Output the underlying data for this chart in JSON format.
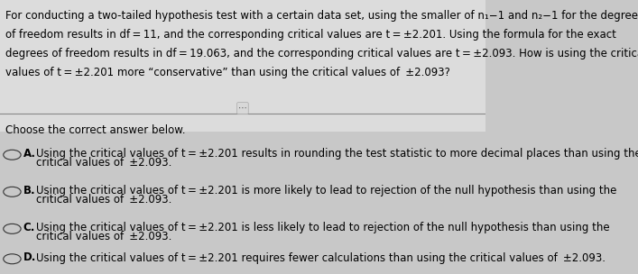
{
  "bg_color": "#d0d0d0",
  "top_bg": "#e8e8e8",
  "bottom_bg": "#c8c8c8",
  "title_text_line1": "For conducting a two-tailed hypothesis test with a certain data set, using the smaller of n₁−1 and n₂−1 for the degrees",
  "title_text_line2": "of freedom results in df = 11, and the corresponding critical values are t = ±2.201. Using the formula for the exact",
  "title_text_line3": "degrees of freedom results in df = 19.063, and the corresponding critical values are t = ±2.093. How is using the critical",
  "title_text_line4": "values of t = ±2.201 more “conservative” than using the critical values of  ±2.093?",
  "choose_text": "Choose the correct answer below.",
  "option_A_line1": "Using the critical values of t = ±2.201 results in rounding the test statistic to more decimal places than using the",
  "option_A_line2": "critical values of  ±2.093.",
  "option_B_line1": "Using the critical values of t = ±2.201 is more likely to lead to rejection of the null hypothesis than using the",
  "option_B_line2": "critical values of  ±2.093.",
  "option_C_line1": "Using the critical values of t = ±2.201 is less likely to lead to rejection of the null hypothesis than using the",
  "option_C_line2": "critical values of  ±2.093.",
  "option_D_line1": "Using the critical values of t = ±2.201 requires fewer calculations than using the critical values of  ±2.093.",
  "text_color": "#000000",
  "font_size_title": 8.5,
  "font_size_body": 8.5,
  "divider_color": "#888888"
}
